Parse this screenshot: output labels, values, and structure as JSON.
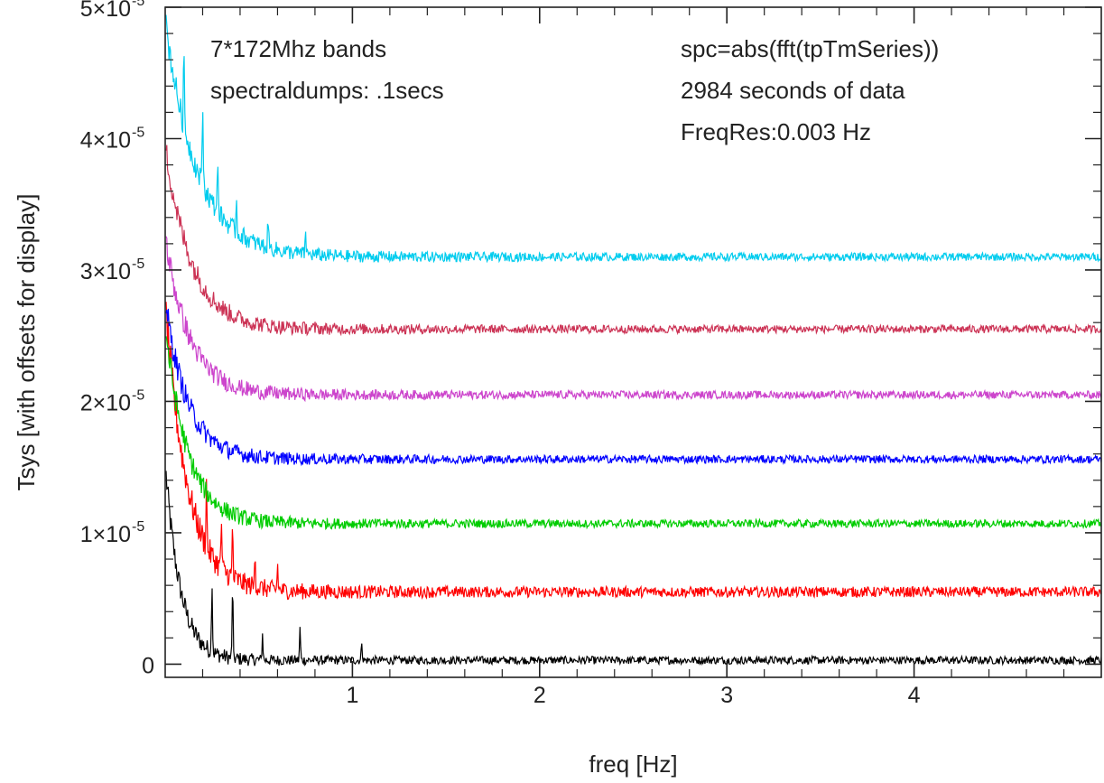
{
  "chart_data": {
    "type": "line",
    "title": "",
    "xlabel": "freq  [Hz]",
    "ylabel": "Tsys [with offsets for display]",
    "xlim": [
      0,
      5
    ],
    "ylim": [
      -1e-06,
      5e-05
    ],
    "x_ticks": [
      {
        "value": 1,
        "label": "1"
      },
      {
        "value": 2,
        "label": "2"
      },
      {
        "value": 3,
        "label": "3"
      },
      {
        "value": 4,
        "label": "4"
      }
    ],
    "y_ticks": [
      {
        "value": 0,
        "mant": "0",
        "exp": ""
      },
      {
        "value": 1e-05,
        "mant": "1×10",
        "exp": "-5"
      },
      {
        "value": 2e-05,
        "mant": "2×10",
        "exp": "-5"
      },
      {
        "value": 3e-05,
        "mant": "3×10",
        "exp": "-5"
      },
      {
        "value": 4e-05,
        "mant": "4×10",
        "exp": "-5"
      },
      {
        "value": 5e-05,
        "mant": "5×10",
        "exp": "-5"
      }
    ],
    "annotations": {
      "left": [
        "7*172Mhz bands",
        "spectraldumps: .1secs"
      ],
      "right": [
        "spc=abs(fft(tpTmSeries))",
        "2984 seconds of data",
        "FreqRes:0.003 Hz"
      ]
    },
    "grid": false,
    "legend": "none",
    "series": [
      {
        "color": "#000000",
        "baseline": 3e-07,
        "noise": 3e-07,
        "decay_amp": 1.5e-05,
        "decay_tau": 0.08,
        "spikes": [
          [
            0.25,
            6e-06
          ],
          [
            0.36,
            6.5e-06
          ],
          [
            0.52,
            2e-06
          ],
          [
            0.72,
            2.5e-06
          ],
          [
            1.05,
            1.5e-06
          ]
        ]
      },
      {
        "color": "#ff0000",
        "baseline": 5.5e-06,
        "noise": 4e-07,
        "decay_amp": 2.2e-05,
        "decay_tau": 0.12,
        "spikes": [
          [
            0.22,
            5e-06
          ],
          [
            0.3,
            4e-06
          ],
          [
            0.36,
            4.5e-06
          ],
          [
            0.48,
            3e-06
          ],
          [
            0.6,
            2e-06
          ]
        ]
      },
      {
        "color": "#00cc00",
        "baseline": 1.07e-05,
        "noise": 3e-07,
        "decay_amp": 1.5e-05,
        "decay_tau": 0.12,
        "spikes": []
      },
      {
        "color": "#0000ff",
        "baseline": 1.56e-05,
        "noise": 3e-07,
        "decay_amp": 1.2e-05,
        "decay_tau": 0.12,
        "spikes": []
      },
      {
        "color": "#cc44cc",
        "baseline": 2.05e-05,
        "noise": 3e-07,
        "decay_amp": 1.2e-05,
        "decay_tau": 0.13,
        "spikes": []
      },
      {
        "color": "#cc3355",
        "baseline": 2.55e-05,
        "noise": 3e-07,
        "decay_amp": 1.4e-05,
        "decay_tau": 0.14,
        "spikes": []
      },
      {
        "color": "#00ccee",
        "baseline": 3.1e-05,
        "noise": 3e-07,
        "decay_amp": 1.8e-05,
        "decay_tau": 0.17,
        "spikes": [
          [
            0.1,
            6e-06
          ],
          [
            0.2,
            7e-06
          ],
          [
            0.28,
            5e-06
          ],
          [
            0.38,
            3e-06
          ],
          [
            0.55,
            2.5e-06
          ],
          [
            0.75,
            1.8e-06
          ]
        ]
      }
    ]
  }
}
